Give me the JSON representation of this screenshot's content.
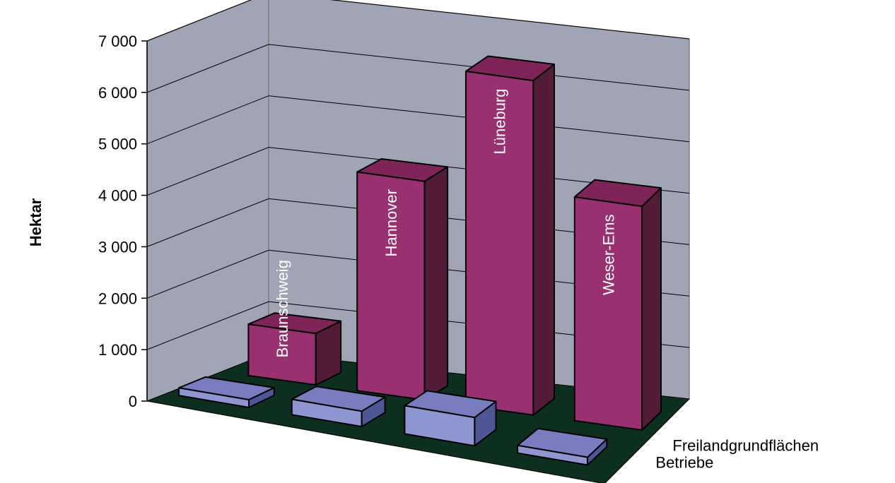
{
  "chart_data": {
    "type": "bar",
    "subtype": "3d-column",
    "title": "",
    "ylabel": "Hektar",
    "ylim": [
      0,
      7000
    ],
    "yticks": [
      0,
      1000,
      2000,
      3000,
      4000,
      5000,
      6000,
      7000
    ],
    "ytick_labels": [
      "0",
      "1 000",
      "2 000",
      "3 000",
      "4 000",
      "5 000",
      "6 000",
      "7 000"
    ],
    "grid": true,
    "categories": [
      "Braunschweig",
      "Hannover",
      "Lüneburg",
      "Weser-Ems"
    ],
    "series": [
      {
        "name": "Freilandgrundflächen",
        "values": [
          1000,
          4250,
          6500,
          4350
        ]
      },
      {
        "name": "Betriebe",
        "values": [
          150,
          300,
          550,
          150
        ]
      }
    ]
  },
  "colors": {
    "wall": "#a0a4b4",
    "floor": "#0d2f20",
    "series_front": [
      "#993070",
      "#8e96d2"
    ],
    "series_side": [
      "#521c38",
      "#4e5696"
    ],
    "series_top": [
      "#7e2458",
      "#7a7cc0"
    ]
  }
}
